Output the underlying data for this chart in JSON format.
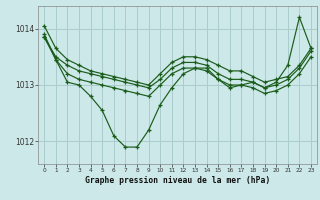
{
  "title": "Graphe pression niveau de la mer (hPa)",
  "bg_color": "#cce8e8",
  "grid_color": "#aacccc",
  "line_color": "#1a5c1a",
  "xlim": [
    -0.5,
    23.5
  ],
  "ylim": [
    1011.6,
    1014.4
  ],
  "yticks": [
    1012,
    1013,
    1014
  ],
  "xticks": [
    0,
    1,
    2,
    3,
    4,
    5,
    6,
    7,
    8,
    9,
    10,
    11,
    12,
    13,
    14,
    15,
    16,
    17,
    18,
    19,
    20,
    21,
    22,
    23
  ],
  "series": [
    [
      1014.05,
      1013.65,
      1013.45,
      1013.35,
      1013.25,
      1013.2,
      1013.15,
      1013.1,
      1013.05,
      1013.0,
      1013.2,
      1013.4,
      1013.5,
      1013.5,
      1013.45,
      1013.35,
      1013.25,
      1013.25,
      1013.15,
      1013.05,
      1013.1,
      1013.15,
      1013.35,
      1013.65
    ],
    [
      1013.85,
      1013.5,
      1013.35,
      1013.25,
      1013.2,
      1013.15,
      1013.1,
      1013.05,
      1013.0,
      1012.95,
      1013.1,
      1013.3,
      1013.4,
      1013.4,
      1013.35,
      1013.2,
      1013.1,
      1013.1,
      1013.05,
      1012.95,
      1013.0,
      1013.1,
      1013.3,
      1013.6
    ],
    [
      1013.9,
      1013.45,
      1013.05,
      1013.0,
      1012.8,
      1012.55,
      1012.1,
      1011.9,
      1011.9,
      1012.2,
      1012.65,
      1012.95,
      1013.2,
      1013.3,
      1013.3,
      1013.1,
      1012.95,
      1013.0,
      1013.05,
      1012.95,
      1013.05,
      1013.35,
      1014.2,
      1013.65
    ],
    [
      1013.85,
      1013.45,
      1013.2,
      1013.1,
      1013.05,
      1013.0,
      1012.95,
      1012.9,
      1012.85,
      1012.8,
      1013.0,
      1013.2,
      1013.3,
      1013.3,
      1013.25,
      1013.1,
      1013.0,
      1013.0,
      1012.95,
      1012.85,
      1012.9,
      1013.0,
      1013.2,
      1013.5
    ]
  ]
}
